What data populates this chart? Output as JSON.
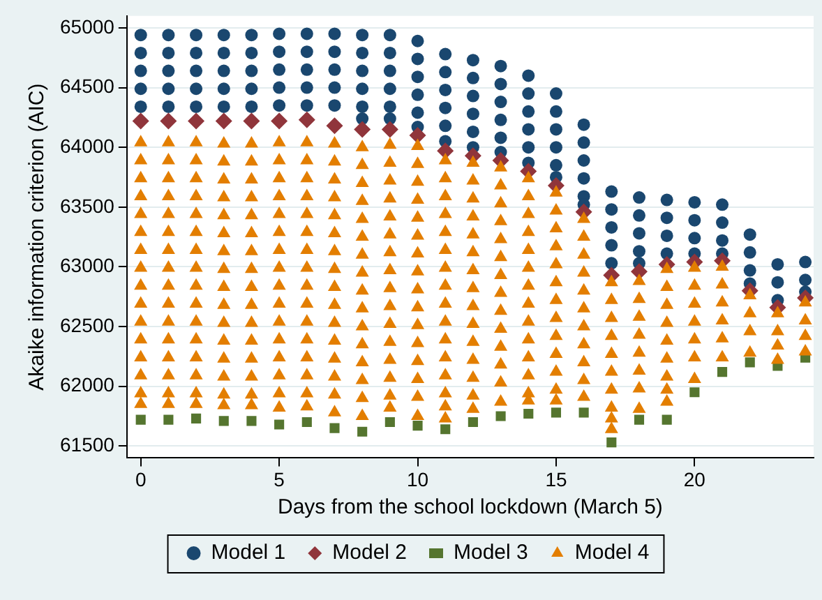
{
  "chart_data": {
    "type": "scatter",
    "xlabel": "Days from the school lockdown (March 5)",
    "ylabel": "Akaike information criterion (AIC)",
    "xlim": [
      -0.5,
      24.3
    ],
    "ylim": [
      61400,
      65100
    ],
    "xticks": [
      0,
      5,
      10,
      15,
      20
    ],
    "yticks": [
      61500,
      62000,
      62500,
      63000,
      63500,
      64000,
      64500,
      65000
    ],
    "grid": "y",
    "legend": "bottom",
    "series": [
      {
        "name": "Model 1",
        "color": "#1a476f",
        "marker": "circle",
        "x": [
          0,
          0,
          0,
          0,
          0,
          1,
          1,
          1,
          1,
          1,
          2,
          2,
          2,
          2,
          2,
          3,
          3,
          3,
          3,
          3,
          4,
          4,
          4,
          4,
          4,
          5,
          5,
          5,
          5,
          5,
          6,
          6,
          6,
          6,
          6,
          7,
          7,
          7,
          7,
          7,
          8,
          8,
          8,
          8,
          8,
          8,
          9,
          9,
          9,
          9,
          9,
          9,
          10,
          10,
          10,
          10,
          10,
          10,
          11,
          11,
          11,
          11,
          11,
          11,
          12,
          12,
          12,
          12,
          12,
          12,
          13,
          13,
          13,
          13,
          13,
          13,
          14,
          14,
          14,
          14,
          14,
          14,
          15,
          15,
          15,
          15,
          15,
          15,
          16,
          16,
          16,
          16,
          16,
          16,
          17,
          17,
          17,
          17,
          17,
          18,
          18,
          18,
          18,
          18,
          19,
          19,
          19,
          19,
          20,
          20,
          20,
          20,
          21,
          21,
          21,
          21,
          22,
          22,
          22,
          22,
          23,
          23,
          23,
          24,
          24,
          24
        ],
        "values": [
          64940,
          64790,
          64640,
          64490,
          64340,
          64940,
          64790,
          64640,
          64490,
          64340,
          64940,
          64790,
          64640,
          64490,
          64340,
          64940,
          64790,
          64640,
          64490,
          64340,
          64940,
          64790,
          64640,
          64490,
          64340,
          64950,
          64800,
          64650,
          64500,
          64350,
          64950,
          64800,
          64650,
          64500,
          64350,
          64950,
          64800,
          64650,
          64500,
          64350,
          64940,
          64790,
          64640,
          64490,
          64340,
          64240,
          64940,
          64790,
          64640,
          64490,
          64340,
          64240,
          64890,
          64740,
          64590,
          64440,
          64290,
          64170,
          64780,
          64630,
          64480,
          64330,
          64180,
          64050,
          64730,
          64580,
          64430,
          64280,
          64130,
          64000,
          64680,
          64530,
          64380,
          64230,
          64080,
          63960,
          64600,
          64450,
          64300,
          64150,
          64000,
          63870,
          64450,
          64300,
          64150,
          64000,
          63850,
          63750,
          64190,
          64040,
          63890,
          63740,
          63590,
          63520,
          63630,
          63480,
          63330,
          63180,
          63030,
          63580,
          63430,
          63280,
          63130,
          63030,
          63560,
          63410,
          63260,
          63110,
          63540,
          63390,
          63240,
          63110,
          63520,
          63370,
          63220,
          63110,
          63270,
          63120,
          62970,
          62860,
          63020,
          62870,
          62720,
          63040,
          62890,
          62790
        ]
      },
      {
        "name": "Model 2",
        "color": "#90353b",
        "marker": "diamond",
        "x": [
          0,
          1,
          2,
          3,
          4,
          5,
          6,
          7,
          8,
          9,
          10,
          11,
          12,
          13,
          14,
          15,
          16,
          17,
          18,
          19,
          20,
          21,
          22,
          23,
          24
        ],
        "values": [
          64220,
          64220,
          64220,
          64220,
          64220,
          64220,
          64230,
          64180,
          64150,
          64150,
          64100,
          63970,
          63930,
          63890,
          63800,
          63680,
          63460,
          62930,
          62960,
          63020,
          63040,
          63050,
          62800,
          62660,
          62740
        ]
      },
      {
        "name": "Model 3",
        "color": "#55752f",
        "marker": "square",
        "x": [
          0,
          1,
          2,
          3,
          4,
          5,
          6,
          7,
          8,
          9,
          10,
          11,
          12,
          13,
          14,
          15,
          16,
          17,
          18,
          19,
          20,
          21,
          22,
          23,
          24
        ],
        "values": [
          61720,
          61720,
          61730,
          61710,
          61710,
          61680,
          61700,
          61650,
          61620,
          61700,
          61670,
          61640,
          61700,
          61750,
          61770,
          61780,
          61780,
          61530,
          61720,
          61720,
          61950,
          62120,
          62200,
          62170,
          62240
        ]
      },
      {
        "name": "Model 4",
        "color": "#e37e00",
        "marker": "triangle",
        "x": [
          0,
          0,
          0,
          0,
          0,
          0,
          0,
          0,
          0,
          0,
          0,
          0,
          0,
          0,
          0,
          0,
          1,
          1,
          1,
          1,
          1,
          1,
          1,
          1,
          1,
          1,
          1,
          1,
          1,
          1,
          1,
          1,
          2,
          2,
          2,
          2,
          2,
          2,
          2,
          2,
          2,
          2,
          2,
          2,
          2,
          2,
          2,
          2,
          3,
          3,
          3,
          3,
          3,
          3,
          3,
          3,
          3,
          3,
          3,
          3,
          3,
          3,
          3,
          3,
          4,
          4,
          4,
          4,
          4,
          4,
          4,
          4,
          4,
          4,
          4,
          4,
          4,
          4,
          4,
          4,
          5,
          5,
          5,
          5,
          5,
          5,
          5,
          5,
          5,
          5,
          5,
          5,
          5,
          5,
          5,
          5,
          6,
          6,
          6,
          6,
          6,
          6,
          6,
          6,
          6,
          6,
          6,
          6,
          6,
          6,
          6,
          6,
          7,
          7,
          7,
          7,
          7,
          7,
          7,
          7,
          7,
          7,
          7,
          7,
          7,
          7,
          7,
          7,
          8,
          8,
          8,
          8,
          8,
          8,
          8,
          8,
          8,
          8,
          8,
          8,
          8,
          8,
          8,
          8,
          9,
          9,
          9,
          9,
          9,
          9,
          9,
          9,
          9,
          9,
          9,
          9,
          9,
          9,
          9,
          9,
          10,
          10,
          10,
          10,
          10,
          10,
          10,
          10,
          10,
          10,
          10,
          10,
          10,
          10,
          10,
          10,
          11,
          11,
          11,
          11,
          11,
          11,
          11,
          11,
          11,
          11,
          11,
          11,
          11,
          11,
          11,
          11,
          12,
          12,
          12,
          12,
          12,
          12,
          12,
          12,
          12,
          12,
          12,
          12,
          12,
          12,
          12,
          13,
          13,
          13,
          13,
          13,
          13,
          13,
          13,
          13,
          13,
          13,
          13,
          13,
          13,
          14,
          14,
          14,
          14,
          14,
          14,
          14,
          14,
          14,
          14,
          14,
          14,
          14,
          14,
          15,
          15,
          15,
          15,
          15,
          15,
          15,
          15,
          15,
          15,
          15,
          15,
          15,
          16,
          16,
          16,
          16,
          16,
          16,
          16,
          16,
          16,
          16,
          16,
          17,
          17,
          17,
          17,
          17,
          17,
          17,
          17,
          17,
          17,
          18,
          18,
          18,
          18,
          18,
          18,
          18,
          18,
          19,
          19,
          19,
          19,
          19,
          19,
          19,
          19,
          19,
          20,
          20,
          20,
          20,
          20,
          20,
          20,
          21,
          21,
          21,
          21,
          21,
          21,
          22,
          22,
          22,
          22,
          23,
          23,
          23,
          23,
          24,
          24,
          24,
          24
        ],
        "values": [
          64040,
          63890,
          63740,
          63590,
          63440,
          63290,
          63140,
          62990,
          62840,
          62690,
          62540,
          62390,
          62240,
          62090,
          61940,
          61850,
          64040,
          63890,
          63740,
          63590,
          63440,
          63290,
          63140,
          62990,
          62840,
          62690,
          62540,
          62390,
          62240,
          62090,
          61940,
          61850,
          64040,
          63890,
          63740,
          63590,
          63440,
          63290,
          63140,
          62990,
          62840,
          62690,
          62540,
          62390,
          62240,
          62090,
          61940,
          61850,
          64030,
          63880,
          63730,
          63580,
          63430,
          63280,
          63130,
          62980,
          62830,
          62680,
          62530,
          62380,
          62230,
          62080,
          61930,
          61840,
          64030,
          63880,
          63730,
          63580,
          63430,
          63280,
          63130,
          62980,
          62830,
          62680,
          62530,
          62380,
          62230,
          62080,
          61930,
          61840,
          64040,
          63890,
          63740,
          63590,
          63440,
          63290,
          63140,
          62990,
          62840,
          62690,
          62540,
          62390,
          62240,
          62090,
          61940,
          61820,
          64040,
          63890,
          63740,
          63590,
          63440,
          63290,
          63140,
          62990,
          62840,
          62690,
          62540,
          62390,
          62240,
          62090,
          61940,
          61830,
          64030,
          63880,
          63730,
          63580,
          63430,
          63280,
          63130,
          62980,
          62830,
          62680,
          62530,
          62380,
          62230,
          62080,
          61930,
          61780,
          64000,
          63850,
          63700,
          63550,
          63400,
          63250,
          63100,
          62950,
          62800,
          62650,
          62500,
          62350,
          62200,
          62050,
          61900,
          61750,
          64020,
          63870,
          63720,
          63570,
          63420,
          63270,
          63120,
          62970,
          62820,
          62670,
          62520,
          62370,
          62220,
          62070,
          61920,
          61820,
          64010,
          63860,
          63710,
          63560,
          63410,
          63260,
          63110,
          62960,
          62810,
          62660,
          62510,
          62360,
          62210,
          62060,
          61910,
          61750,
          63890,
          63740,
          63590,
          63440,
          63290,
          63140,
          62990,
          62840,
          62690,
          62540,
          62390,
          62240,
          62090,
          61940,
          61830,
          61730,
          63870,
          63720,
          63570,
          63420,
          63270,
          63120,
          62970,
          62820,
          62670,
          62520,
          62370,
          62220,
          62070,
          61920,
          61810,
          63830,
          63680,
          63530,
          63380,
          63230,
          63080,
          62930,
          62780,
          62630,
          62480,
          62330,
          62180,
          62030,
          61870,
          63740,
          63590,
          63440,
          63290,
          63140,
          62990,
          62840,
          62690,
          62540,
          62390,
          62240,
          62090,
          61940,
          61880,
          63620,
          63470,
          63320,
          63170,
          63020,
          62870,
          62720,
          62570,
          62420,
          62270,
          62120,
          61970,
          61880,
          63400,
          63250,
          63100,
          62950,
          62800,
          62650,
          62500,
          62350,
          62200,
          62050,
          61910,
          62870,
          62720,
          62570,
          62420,
          62270,
          62120,
          61970,
          61820,
          61730,
          61640,
          62880,
          62730,
          62580,
          62430,
          62280,
          62130,
          61980,
          61810,
          62980,
          62830,
          62680,
          62530,
          62380,
          62230,
          62080,
          61970,
          61870,
          62990,
          62840,
          62690,
          62540,
          62390,
          62240,
          62060,
          63000,
          62850,
          62700,
          62550,
          62400,
          62240,
          62760,
          62610,
          62460,
          62280,
          62610,
          62460,
          62340,
          62220,
          62700,
          62550,
          62420,
          62290
        ]
      }
    ]
  }
}
